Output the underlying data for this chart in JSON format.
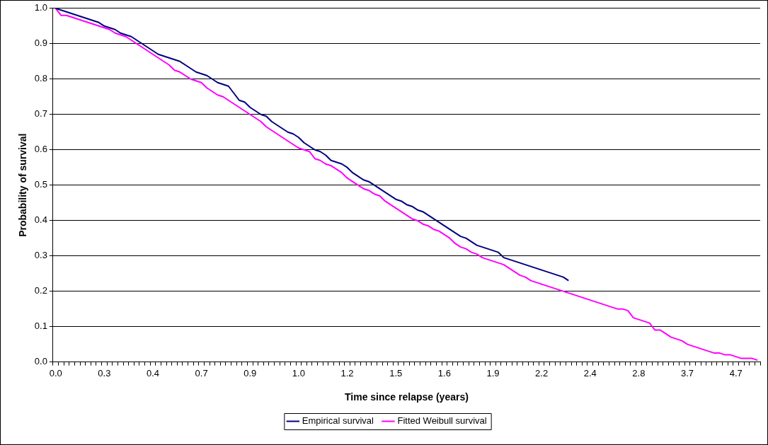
{
  "chart_data": {
    "type": "line",
    "xlabel": "Time since relapse (years)",
    "ylabel": "Probability of survival",
    "categories": [
      "0.0",
      null,
      null,
      null,
      null,
      null,
      null,
      null,
      null,
      "0.3",
      null,
      null,
      null,
      null,
      null,
      null,
      null,
      null,
      "0.4",
      null,
      null,
      null,
      null,
      null,
      null,
      null,
      null,
      "0.7",
      null,
      null,
      null,
      null,
      null,
      null,
      null,
      null,
      "0.9",
      null,
      null,
      null,
      null,
      null,
      null,
      null,
      null,
      "1.0",
      null,
      null,
      null,
      null,
      null,
      null,
      null,
      null,
      "1.2",
      null,
      null,
      null,
      null,
      null,
      null,
      null,
      null,
      "1.5",
      null,
      null,
      null,
      null,
      null,
      null,
      null,
      null,
      "1.6",
      null,
      null,
      null,
      null,
      null,
      null,
      null,
      null,
      "1.9",
      null,
      null,
      null,
      null,
      null,
      null,
      null,
      null,
      "2.2",
      null,
      null,
      null,
      null,
      null,
      null,
      null,
      null,
      "2.4",
      null,
      null,
      null,
      null,
      null,
      null,
      null,
      null,
      "2.8",
      null,
      null,
      null,
      null,
      null,
      null,
      null,
      null,
      "3.7",
      null,
      null,
      null,
      null,
      null,
      null,
      null,
      null,
      "4.7",
      null,
      null,
      null,
      null
    ],
    "series": [
      {
        "name": "Empirical survival",
        "color": "#000080",
        "values": [
          1.0,
          0.995,
          0.99,
          0.985,
          0.98,
          0.975,
          0.97,
          0.965,
          0.96,
          0.95,
          0.945,
          0.94,
          0.93,
          0.925,
          0.92,
          0.91,
          0.9,
          0.89,
          0.88,
          0.87,
          0.865,
          0.86,
          0.855,
          0.85,
          0.84,
          0.83,
          0.82,
          0.815,
          0.81,
          0.8,
          0.79,
          0.785,
          0.78,
          0.76,
          0.74,
          0.735,
          0.72,
          0.71,
          0.7,
          0.695,
          0.68,
          0.67,
          0.66,
          0.65,
          0.645,
          0.635,
          0.62,
          0.61,
          0.6,
          0.595,
          0.585,
          0.57,
          0.565,
          0.56,
          0.55,
          0.535,
          0.525,
          0.515,
          0.51,
          0.5,
          0.49,
          0.48,
          0.47,
          0.46,
          0.455,
          0.445,
          0.44,
          0.43,
          0.425,
          0.415,
          0.405,
          0.395,
          0.385,
          0.375,
          0.365,
          0.355,
          0.35,
          0.34,
          0.33,
          0.325,
          0.32,
          0.315,
          0.31,
          0.295,
          0.29,
          0.285,
          0.28,
          0.275,
          0.27,
          0.265,
          0.26,
          0.255,
          0.25,
          0.245,
          0.24,
          0.23,
          null,
          null,
          null,
          null,
          null,
          null,
          null,
          null,
          null,
          null,
          null,
          null,
          null,
          null,
          null,
          null,
          null,
          null,
          null,
          null,
          null,
          null,
          null,
          null,
          null,
          null,
          null,
          null,
          null,
          null,
          null,
          null,
          null,
          null,
          null
        ]
      },
      {
        "name": "Fitted Weibull survival",
        "color": "#ff00ff",
        "values": [
          1.0,
          0.98,
          0.98,
          0.975,
          0.97,
          0.965,
          0.96,
          0.955,
          0.95,
          0.945,
          0.94,
          0.93,
          0.925,
          0.92,
          0.91,
          0.9,
          0.89,
          0.88,
          0.87,
          0.86,
          0.85,
          0.84,
          0.825,
          0.82,
          0.81,
          0.8,
          0.795,
          0.79,
          0.775,
          0.765,
          0.755,
          0.75,
          0.74,
          0.73,
          0.72,
          0.71,
          0.7,
          0.69,
          0.68,
          0.665,
          0.655,
          0.645,
          0.635,
          0.625,
          0.615,
          0.605,
          0.6,
          0.595,
          0.575,
          0.57,
          0.56,
          0.555,
          0.545,
          0.535,
          0.52,
          0.51,
          0.5,
          0.49,
          0.485,
          0.475,
          0.47,
          0.455,
          0.445,
          0.435,
          0.425,
          0.415,
          0.405,
          0.4,
          0.39,
          0.385,
          0.375,
          0.37,
          0.36,
          0.35,
          0.335,
          0.325,
          0.32,
          0.31,
          0.305,
          0.295,
          0.29,
          0.285,
          0.28,
          0.275,
          0.265,
          0.255,
          0.245,
          0.24,
          0.23,
          0.225,
          0.22,
          0.215,
          0.21,
          0.205,
          0.2,
          0.195,
          0.19,
          0.185,
          0.18,
          0.175,
          0.17,
          0.165,
          0.16,
          0.155,
          0.15,
          0.15,
          0.145,
          0.125,
          0.12,
          0.115,
          0.11,
          0.09,
          0.09,
          0.08,
          0.07,
          0.065,
          0.06,
          0.05,
          0.045,
          0.04,
          0.035,
          0.03,
          0.025,
          0.025,
          0.02,
          0.02,
          0.015,
          0.01,
          0.01,
          0.01,
          0.005
        ]
      }
    ],
    "ylim": [
      0,
      1
    ],
    "yticks": [
      {
        "value": 0,
        "label": "0.0"
      },
      {
        "value": 0.1,
        "label": "0.1"
      },
      {
        "value": 0.2,
        "label": "0.2"
      },
      {
        "value": 0.3,
        "label": "0.3"
      },
      {
        "value": 0.4,
        "label": "0.4"
      },
      {
        "value": 0.5,
        "label": "0.5"
      },
      {
        "value": 0.6,
        "label": "0.6"
      },
      {
        "value": 0.7,
        "label": "0.7"
      },
      {
        "value": 0.8,
        "label": "0.8"
      },
      {
        "value": 0.9,
        "label": "0.9"
      },
      {
        "value": 1,
        "label": "1.0"
      }
    ],
    "grid": "y",
    "legend": "bottom",
    "marker": "none",
    "line_style": "solid"
  }
}
